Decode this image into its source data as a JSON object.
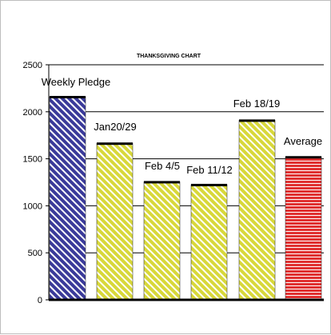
{
  "chart_data": {
    "type": "bar",
    "title": "THANKSGIVING CHART",
    "xlabel": "",
    "ylabel": "",
    "categories": [
      "Weekly Pledge",
      "Jan20/29",
      "Feb 4/5",
      "Feb 11/12",
      "Feb 18/19",
      "Average"
    ],
    "bar_labels": [
      "Weekly Pledge",
      "Jan20/29",
      "Feb 4/5",
      "Feb 11/12",
      "Feb 18/19",
      "Average"
    ],
    "values": [
      2160,
      1665,
      1255,
      1225,
      1910,
      1520
    ],
    "ylim": [
      0,
      2500
    ],
    "yticks": [
      "0",
      "500",
      "1000",
      "1500",
      "2000",
      "2500"
    ],
    "grid": true,
    "legend": "none",
    "colors": {
      "weekly_pledge": {
        "fill": "#3a3a9a",
        "stripe": "#ffffff"
      },
      "weekly": {
        "fill": "#d8d83a",
        "stripe": "#ffffff"
      },
      "average": {
        "fill": "#e03030",
        "stripe": "#ffffff"
      },
      "bar_top": "#000000",
      "axis": "#000000",
      "grid": "#000000",
      "frame": "#bdbdbd"
    }
  }
}
